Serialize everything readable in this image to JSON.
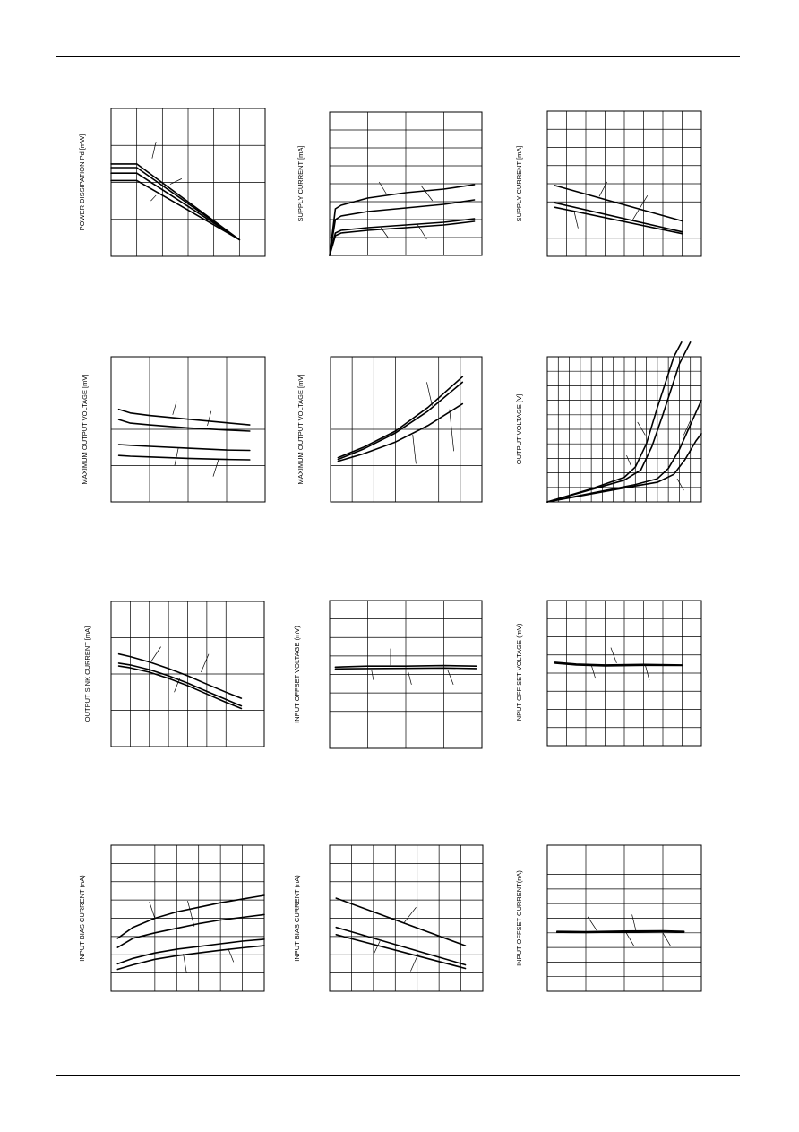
{
  "page": {
    "colors": {
      "ink": "#000000",
      "paper": "#ffffff"
    }
  },
  "chart_data": [
    {
      "id": "c1",
      "type": "line",
      "ylabel": "POWER DISSIPATION Pd [mW]",
      "xlabel": "",
      "title": "",
      "grid": {
        "cols": 6,
        "rows": 4
      },
      "xlim": [
        0,
        6
      ],
      "ylim": [
        0,
        4
      ],
      "series": [
        {
          "x": [
            0,
            1,
            5
          ],
          "y": [
            2.5,
            2.5,
            0.45
          ]
        },
        {
          "x": [
            0,
            1,
            5
          ],
          "y": [
            2.4,
            2.4,
            0.45
          ]
        },
        {
          "x": [
            0,
            1,
            5
          ],
          "y": [
            2.25,
            2.25,
            0.45
          ]
        },
        {
          "x": [
            0,
            1,
            5
          ],
          "y": [
            2.05,
            2.05,
            0.45
          ]
        }
      ],
      "leaders": [
        [
          1.6,
          2.65,
          1.75,
          3.1
        ],
        [
          2.3,
          1.95,
          2.75,
          2.1
        ],
        [
          1.75,
          1.65,
          1.55,
          1.5
        ]
      ]
    },
    {
      "id": "c2",
      "type": "line",
      "ylabel": "SUPPLY CURRENT [mA]",
      "xlabel": "",
      "title": "",
      "grid": {
        "cols": 4,
        "rows": 8
      },
      "xlim": [
        0,
        4
      ],
      "ylim": [
        0,
        8
      ],
      "series": [
        {
          "x": [
            0,
            0.15,
            0.3,
            1.0,
            2.0,
            3.0,
            3.8
          ],
          "y": [
            0,
            2.6,
            2.8,
            3.2,
            3.5,
            3.7,
            3.95
          ]
        },
        {
          "x": [
            0,
            0.15,
            0.3,
            1.0,
            2.0,
            3.0,
            3.8
          ],
          "y": [
            0,
            2.0,
            2.2,
            2.45,
            2.65,
            2.85,
            3.1
          ]
        },
        {
          "x": [
            0,
            0.15,
            0.3,
            1.0,
            2.0,
            3.0,
            3.8
          ],
          "y": [
            0,
            1.25,
            1.4,
            1.55,
            1.7,
            1.85,
            2.05
          ]
        },
        {
          "x": [
            0,
            0.15,
            0.3,
            1.0,
            2.0,
            3.0,
            3.8
          ],
          "y": [
            0,
            1.1,
            1.25,
            1.4,
            1.55,
            1.7,
            1.9
          ]
        }
      ],
      "leaders": [
        [
          1.5,
          3.4,
          1.3,
          4.1
        ],
        [
          2.4,
          3.9,
          2.7,
          3.05
        ],
        [
          1.35,
          1.55,
          1.55,
          0.95
        ],
        [
          2.3,
          1.75,
          2.55,
          0.9
        ]
      ]
    },
    {
      "id": "c3",
      "type": "line",
      "ylabel": "SUPPLY CURRENT [mA]",
      "xlabel": "",
      "title": "",
      "grid": {
        "cols": 8,
        "rows": 8
      },
      "xlim": [
        0,
        8
      ],
      "ylim": [
        0,
        8
      ],
      "series": [
        {
          "x": [
            0.4,
            7.0
          ],
          "y": [
            3.9,
            1.95
          ]
        },
        {
          "x": [
            0.4,
            7.0
          ],
          "y": [
            2.95,
            1.35
          ]
        },
        {
          "x": [
            0.4,
            7.0
          ],
          "y": [
            2.7,
            1.25
          ]
        }
      ],
      "leaders": [
        [
          2.7,
          3.3,
          3.1,
          4.1
        ],
        [
          4.4,
          1.95,
          5.2,
          3.35
        ],
        [
          1.4,
          2.45,
          1.6,
          1.55
        ]
      ]
    },
    {
      "id": "c4",
      "type": "line",
      "ylabel": "MAXIMUM OUTPUT VOLTAGE [mV]",
      "xlabel": "",
      "title": "",
      "grid": {
        "cols": 4,
        "rows": 4
      },
      "xlim": [
        0,
        4
      ],
      "ylim": [
        0,
        4
      ],
      "series": [
        {
          "x": [
            0.2,
            0.5,
            1.0,
            2.0,
            3.0,
            3.6
          ],
          "y": [
            2.55,
            2.45,
            2.38,
            2.28,
            2.18,
            2.12
          ]
        },
        {
          "x": [
            0.2,
            0.5,
            1.0,
            2.0,
            3.0,
            3.6
          ],
          "y": [
            2.27,
            2.17,
            2.12,
            2.04,
            1.98,
            1.95
          ]
        },
        {
          "x": [
            0.2,
            0.5,
            1.0,
            2.0,
            3.0,
            3.6
          ],
          "y": [
            1.58,
            1.56,
            1.53,
            1.48,
            1.43,
            1.42
          ]
        },
        {
          "x": [
            0.2,
            0.5,
            1.0,
            2.0,
            3.0,
            3.6
          ],
          "y": [
            1.28,
            1.26,
            1.24,
            1.2,
            1.17,
            1.16
          ]
        }
      ],
      "leaders": [
        [
          1.6,
          2.4,
          1.7,
          2.77
        ],
        [
          2.5,
          2.1,
          2.6,
          2.5
        ],
        [
          1.75,
          1.5,
          1.65,
          1.0
        ],
        [
          2.8,
          1.2,
          2.65,
          0.7
        ]
      ]
    },
    {
      "id": "c5",
      "type": "line",
      "ylabel": "MAXIMUM OUTPUT VOLTAGE [mV]",
      "xlabel": "",
      "title": "",
      "grid": {
        "cols": 7,
        "rows": 4
      },
      "xlim": [
        0,
        7
      ],
      "ylim": [
        0,
        4
      ],
      "series": [
        {
          "x": [
            0.35,
            1.5,
            3.0,
            4.5,
            6.1
          ],
          "y": [
            1.22,
            1.5,
            1.95,
            2.6,
            3.45
          ]
        },
        {
          "x": [
            0.35,
            1.5,
            3.0,
            4.5,
            6.1
          ],
          "y": [
            1.17,
            1.45,
            1.9,
            2.5,
            3.3
          ]
        },
        {
          "x": [
            0.35,
            1.5,
            3.0,
            4.5,
            6.1
          ],
          "y": [
            1.12,
            1.32,
            1.65,
            2.1,
            2.7
          ]
        }
      ],
      "leaders": [
        [
          4.7,
          2.65,
          4.45,
          3.3
        ],
        [
          3.8,
          1.85,
          3.95,
          1.05
        ],
        [
          5.5,
          2.55,
          5.7,
          1.4
        ]
      ]
    },
    {
      "id": "c6",
      "type": "line",
      "ylabel": "OUTPUT VOLTAGE [V]",
      "xlabel": "",
      "title": "",
      "grid": {
        "cols": 14,
        "rows": 10
      },
      "xlim": [
        0,
        14
      ],
      "ylim": [
        0,
        10
      ],
      "series": [
        {
          "x": [
            0,
            4,
            7,
            8,
            9,
            10,
            11.5,
            12.2
          ],
          "y": [
            0,
            0.9,
            1.7,
            2.4,
            4.0,
            6.5,
            10.0,
            11.0
          ]
        },
        {
          "x": [
            0,
            4,
            7,
            8.5,
            9.5,
            10.5,
            12.0,
            13.0
          ],
          "y": [
            0,
            0.85,
            1.5,
            2.2,
            3.8,
            6.0,
            9.5,
            11.0
          ]
        },
        {
          "x": [
            0,
            4,
            8,
            10,
            11,
            12,
            13,
            14
          ],
          "y": [
            0,
            0.6,
            1.2,
            1.6,
            2.3,
            3.6,
            5.3,
            7.0
          ]
        },
        {
          "x": [
            0,
            4,
            8,
            10,
            11.5,
            12.5,
            13.5,
            14
          ],
          "y": [
            0,
            0.55,
            1.1,
            1.35,
            1.9,
            2.9,
            4.2,
            4.7
          ]
        }
      ],
      "leaders": [
        [
          8.9,
          4.6,
          8.2,
          5.5
        ],
        [
          7.6,
          2.5,
          7.2,
          3.2
        ],
        [
          12.4,
          4.6,
          13.0,
          5.6
        ],
        [
          11.8,
          1.6,
          12.4,
          0.8
        ]
      ]
    },
    {
      "id": "c7",
      "type": "line",
      "ylabel": "OUTPUT SINK CURRENT [mA]",
      "xlabel": "",
      "title": "",
      "grid": {
        "cols": 8,
        "rows": 4
      },
      "xlim": [
        0,
        8
      ],
      "ylim": [
        0,
        4
      ],
      "series": [
        {
          "x": [
            0.4,
            1.0,
            2.0,
            3.0,
            4.0,
            5.0,
            6.0,
            6.8
          ],
          "y": [
            2.55,
            2.48,
            2.33,
            2.15,
            1.95,
            1.72,
            1.5,
            1.33
          ]
        },
        {
          "x": [
            0.4,
            1.0,
            2.0,
            3.0,
            4.0,
            5.0,
            6.0,
            6.8
          ],
          "y": [
            2.3,
            2.25,
            2.12,
            1.95,
            1.75,
            1.52,
            1.3,
            1.12
          ]
        },
        {
          "x": [
            0.4,
            1.0,
            2.0,
            3.0,
            4.0,
            5.0,
            6.0,
            6.8
          ],
          "y": [
            2.22,
            2.17,
            2.05,
            1.88,
            1.68,
            1.45,
            1.22,
            1.05
          ]
        }
      ],
      "leaders": [
        [
          2.1,
          2.35,
          2.6,
          2.75
        ],
        [
          4.7,
          2.05,
          5.1,
          2.55
        ],
        [
          3.6,
          1.9,
          3.3,
          1.5
        ]
      ]
    },
    {
      "id": "c8",
      "type": "line",
      "ylabel": "INPUT OFFSET VOLTAGE (mV)",
      "xlabel": "",
      "title": "",
      "grid": {
        "cols": 4,
        "rows": 8
      },
      "xlim": [
        0,
        4
      ],
      "ylim": [
        0,
        8
      ],
      "series": [
        {
          "x": [
            0.15,
            1.0,
            2.0,
            3.0,
            3.85
          ],
          "y": [
            4.4,
            4.45,
            4.45,
            4.48,
            4.45
          ]
        },
        {
          "x": [
            0.15,
            1.0,
            2.0,
            3.0,
            3.85
          ],
          "y": [
            4.3,
            4.32,
            4.33,
            4.35,
            4.32
          ]
        }
      ],
      "leaders": [
        [
          1.6,
          4.5,
          1.6,
          5.4
        ],
        [
          1.1,
          4.25,
          1.15,
          3.7
        ],
        [
          2.05,
          4.25,
          2.15,
          3.45
        ],
        [
          3.1,
          4.25,
          3.25,
          3.45
        ]
      ]
    },
    {
      "id": "c9",
      "type": "line",
      "ylabel": "INPUT OFF SET VOLTAGE (mV)",
      "xlabel": "",
      "title": "",
      "grid": {
        "cols": 8,
        "rows": 8
      },
      "xlim": [
        0,
        8
      ],
      "ylim": [
        0,
        8
      ],
      "series": [
        {
          "x": [
            0.4,
            1.5,
            3.0,
            5.0,
            7.0
          ],
          "y": [
            4.6,
            4.5,
            4.45,
            4.48,
            4.45
          ]
        },
        {
          "x": [
            0.4,
            1.5,
            3.0,
            5.0,
            7.0
          ],
          "y": [
            4.55,
            4.45,
            4.4,
            4.43,
            4.42
          ]
        }
      ],
      "leaders": [
        [
          3.6,
          4.55,
          3.3,
          5.4
        ],
        [
          2.3,
          4.4,
          2.5,
          3.7
        ],
        [
          5.1,
          4.4,
          5.3,
          3.6
        ]
      ]
    },
    {
      "id": "c10",
      "type": "line",
      "ylabel": "INPUT BIAS CURRENT (nA)",
      "xlabel": "",
      "title": "",
      "grid": {
        "cols": 7,
        "rows": 8
      },
      "xlim": [
        0,
        7
      ],
      "ylim": [
        0,
        8
      ],
      "series": [
        {
          "x": [
            0.3,
            1.0,
            2.0,
            3.0,
            4.0,
            5.0,
            6.0,
            7.0
          ],
          "y": [
            2.9,
            3.5,
            4.0,
            4.35,
            4.6,
            4.85,
            5.05,
            5.25
          ]
        },
        {
          "x": [
            0.3,
            1.0,
            2.0,
            3.0,
            4.0,
            5.0,
            6.0,
            7.0
          ],
          "y": [
            2.4,
            2.9,
            3.2,
            3.45,
            3.7,
            3.9,
            4.05,
            4.2
          ]
        },
        {
          "x": [
            0.3,
            1.0,
            2.0,
            3.0,
            4.0,
            5.0,
            6.0,
            7.0
          ],
          "y": [
            1.5,
            1.8,
            2.1,
            2.3,
            2.45,
            2.6,
            2.75,
            2.85
          ]
        },
        {
          "x": [
            0.3,
            1.0,
            2.0,
            3.0,
            4.0,
            5.0,
            6.0,
            7.0
          ],
          "y": [
            1.2,
            1.45,
            1.75,
            1.95,
            2.1,
            2.25,
            2.38,
            2.5
          ]
        }
      ],
      "leaders": [
        [
          2.0,
          4.0,
          1.75,
          4.9
        ],
        [
          3.8,
          3.55,
          3.5,
          4.95
        ],
        [
          3.3,
          2.05,
          3.45,
          1.0
        ],
        [
          5.35,
          2.35,
          5.6,
          1.6
        ]
      ]
    },
    {
      "id": "c11",
      "type": "line",
      "ylabel": "INPUT BIAS CURRENT (nA)",
      "xlabel": "",
      "title": "",
      "grid": {
        "cols": 7,
        "rows": 8
      },
      "xlim": [
        0,
        7
      ],
      "ylim": [
        0,
        8
      ],
      "series": [
        {
          "x": [
            0.3,
            6.2
          ],
          "y": [
            5.1,
            2.5
          ]
        },
        {
          "x": [
            0.3,
            6.2
          ],
          "y": [
            3.5,
            1.45
          ]
        },
        {
          "x": [
            0.3,
            6.2
          ],
          "y": [
            3.1,
            1.25
          ]
        }
      ],
      "leaders": [
        [
          3.4,
          3.75,
          3.95,
          4.6
        ],
        [
          2.3,
          2.75,
          2.0,
          2.0
        ],
        [
          4.05,
          2.05,
          3.7,
          1.1
        ]
      ]
    },
    {
      "id": "c12",
      "type": "line",
      "ylabel": "INPUT OFFSET CURRENT(nA)",
      "xlabel": "",
      "title": "",
      "grid": {
        "cols": 4,
        "rows": 10
      },
      "xlim": [
        0,
        4
      ],
      "ylim": [
        0,
        10
      ],
      "series": [
        {
          "x": [
            0.25,
            1.0,
            2.0,
            3.0,
            3.55
          ],
          "y": [
            4.1,
            4.08,
            4.12,
            4.14,
            4.1
          ]
        },
        {
          "x": [
            0.25,
            1.0,
            2.0,
            3.0,
            3.55
          ],
          "y": [
            4.04,
            4.02,
            4.06,
            4.08,
            4.06
          ]
        }
      ],
      "leaders": [
        [
          1.3,
          4.1,
          1.05,
          5.1
        ],
        [
          2.3,
          4.15,
          2.2,
          5.25
        ],
        [
          2.05,
          4.0,
          2.25,
          3.1
        ],
        [
          3.0,
          4.0,
          3.2,
          3.1
        ]
      ]
    }
  ]
}
